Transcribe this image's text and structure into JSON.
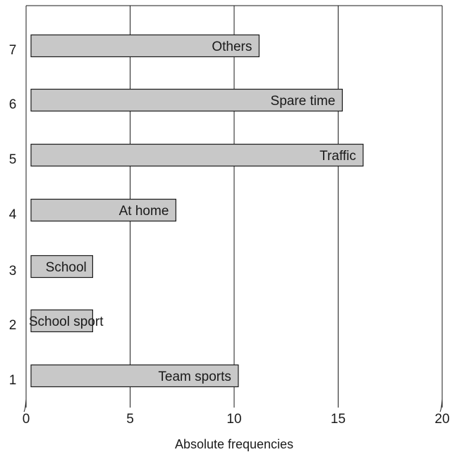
{
  "chart_data": {
    "type": "bar",
    "orientation": "horizontal",
    "categories": [
      "1",
      "2",
      "3",
      "4",
      "5",
      "6",
      "7"
    ],
    "values": [
      10.2,
      3.2,
      3.2,
      7.2,
      16.2,
      15.2,
      11.2
    ],
    "bar_labels": [
      "Team sports",
      "School sport",
      "School",
      "At home",
      "Traffic",
      "Spare time",
      "Others"
    ],
    "x_ticks": [
      "0",
      "5",
      "10",
      "15",
      "20"
    ],
    "xlabel": "Absolute frequencies",
    "ylabel": "",
    "xlim": [
      0,
      20
    ],
    "grid": "vertical lines at major ticks",
    "legend": "none",
    "colors": {
      "bar_fill": "#c8c8c8",
      "bar_stroke": "#1a1a1a",
      "axis": "#1a1a1a"
    }
  }
}
